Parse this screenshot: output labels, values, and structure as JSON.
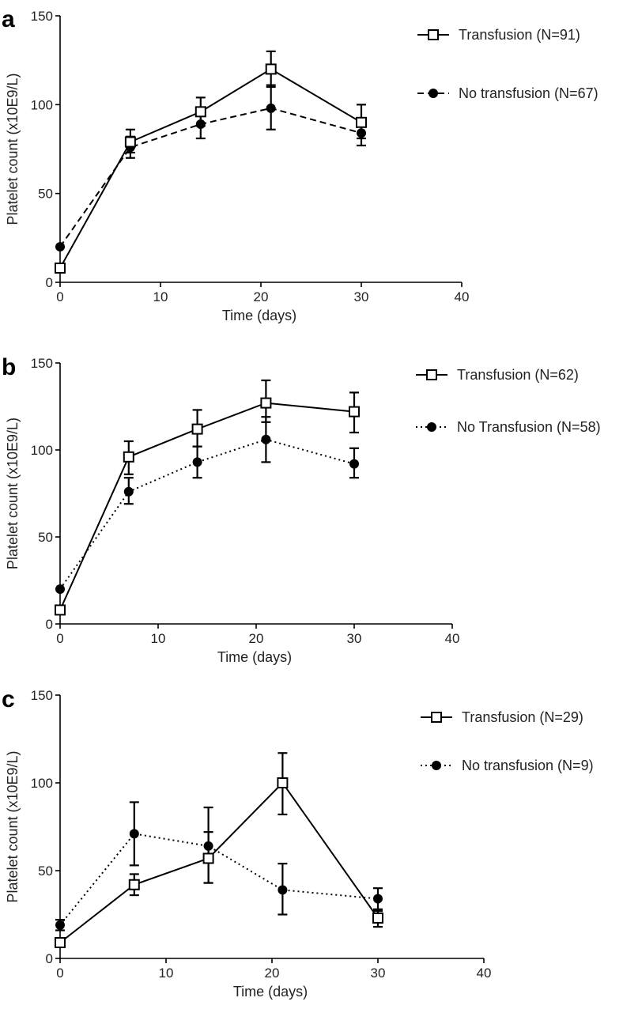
{
  "chart_data": [
    {
      "panel": "a",
      "type": "line",
      "xlabel": "Time (days)",
      "ylabel": "Platelet count (x10E9/L)",
      "xlim": [
        0,
        40
      ],
      "ylim": [
        0,
        150
      ],
      "xticks": [
        0,
        10,
        20,
        30,
        40
      ],
      "yticks": [
        0,
        50,
        100,
        150
      ],
      "legend_position": "top-right",
      "series": [
        {
          "name": "Transfusion (N=91)",
          "marker": "open-square",
          "line": "solid",
          "x": [
            0,
            7,
            14,
            21,
            30
          ],
          "y": [
            8,
            79,
            96,
            120,
            90
          ],
          "err_low": [
            null,
            73,
            88,
            110,
            81
          ],
          "err_high": [
            null,
            86,
            104,
            130,
            100
          ]
        },
        {
          "name": "No transfusion (N=67)",
          "marker": "filled-circle",
          "line": "dashed",
          "x": [
            0,
            7,
            14,
            21,
            30
          ],
          "y": [
            20,
            76,
            89,
            98,
            84
          ],
          "err_low": [
            null,
            70,
            81,
            86,
            77
          ],
          "err_high": [
            null,
            82,
            97,
            111,
            91
          ]
        }
      ]
    },
    {
      "panel": "b",
      "type": "line",
      "xlabel": "Time (days)",
      "ylabel": "Platelet count (x10E9/L)",
      "xlim": [
        0,
        40
      ],
      "ylim": [
        0,
        150
      ],
      "xticks": [
        0,
        10,
        20,
        30,
        40
      ],
      "yticks": [
        0,
        50,
        100,
        150
      ],
      "legend_position": "top-right",
      "series": [
        {
          "name": "Transfusion (N=62)",
          "marker": "open-square",
          "line": "solid",
          "x": [
            0,
            7,
            14,
            21,
            30
          ],
          "y": [
            8,
            96,
            112,
            127,
            122
          ],
          "err_low": [
            null,
            86,
            102,
            116,
            110
          ],
          "err_high": [
            null,
            105,
            123,
            140,
            133
          ]
        },
        {
          "name": "No Transfusion (N=58)",
          "marker": "filled-circle",
          "line": "dotted",
          "x": [
            0,
            7,
            14,
            21,
            30
          ],
          "y": [
            20,
            76,
            93,
            106,
            92
          ],
          "err_low": [
            null,
            69,
            84,
            93,
            84
          ],
          "err_high": [
            null,
            84,
            102,
            119,
            101
          ]
        }
      ]
    },
    {
      "panel": "c",
      "type": "line",
      "xlabel": "Time (days)",
      "ylabel": "Platelet count (x10E9/L)",
      "xlim": [
        0,
        40
      ],
      "ylim": [
        0,
        150
      ],
      "xticks": [
        0,
        10,
        20,
        30,
        40
      ],
      "yticks": [
        0,
        50,
        100,
        150
      ],
      "legend_position": "top-right",
      "series": [
        {
          "name": "Transfusion (N=29)",
          "marker": "open-square",
          "line": "solid",
          "x": [
            0,
            7,
            14,
            21,
            30
          ],
          "y": [
            9,
            42,
            57,
            100,
            23
          ],
          "err_low": [
            null,
            36,
            43,
            82,
            18
          ],
          "err_high": [
            null,
            48,
            72,
            117,
            28
          ]
        },
        {
          "name": "No transfusion (N=9)",
          "marker": "filled-circle",
          "line": "dotted",
          "x": [
            0,
            7,
            14,
            21,
            30
          ],
          "y": [
            19,
            71,
            64,
            39,
            34
          ],
          "err_low": [
            16,
            53,
            43,
            25,
            27
          ],
          "err_high": [
            22,
            89,
            86,
            54,
            40
          ]
        }
      ]
    }
  ]
}
